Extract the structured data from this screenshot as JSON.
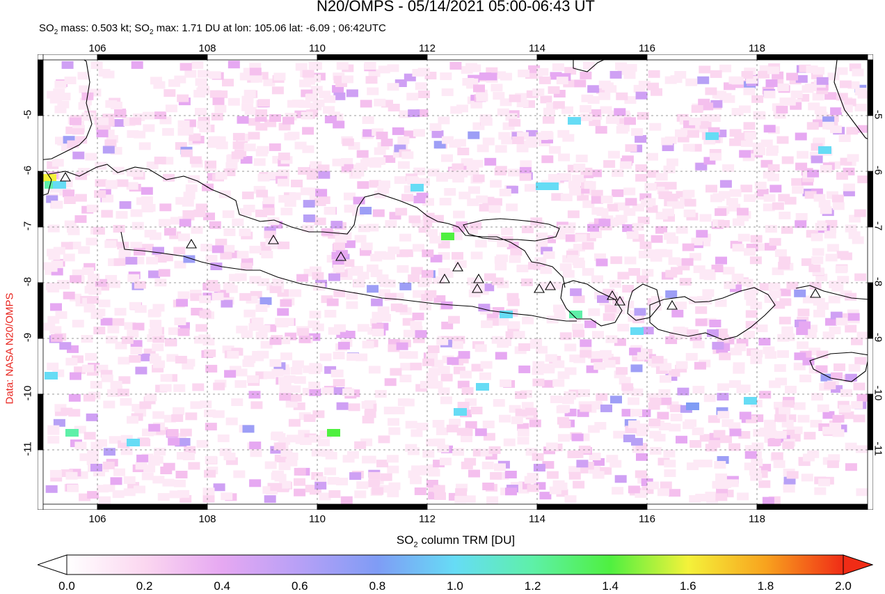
{
  "title": "N20/OMPS - 05/14/2021 05:00-06:43 UT",
  "subtitle": {
    "so2_prefix": "SO",
    "mass_text": " mass: 0.503 kt; SO",
    "max_text": " max: 1.71 DU at lon: 105.06 lat: -6.09 ; 06:42UTC",
    "sub2": "2"
  },
  "side_credit": "Data: NASA N20/OMPS",
  "map": {
    "lon_range": [
      105.0,
      120.0
    ],
    "lat_range": [
      -12.0,
      -3.5
    ],
    "lon_ticks": [
      "106",
      "108",
      "110",
      "112",
      "114",
      "116",
      "118"
    ],
    "lat_ticks": [
      "-5",
      "-6",
      "-7",
      "-8",
      "-9",
      "-10",
      "-11"
    ],
    "grid": true,
    "volcano_icon": "triangle-icon"
  },
  "colorbar": {
    "title_prefix": "SO",
    "title_sub": "2",
    "title_suffix": " column TRM [DU]",
    "ticks": [
      "0.0",
      "0.2",
      "0.4",
      "0.6",
      "0.8",
      "1.0",
      "1.2",
      "1.4",
      "1.6",
      "1.8",
      "2.0"
    ],
    "range": [
      0.0,
      2.0
    ],
    "colors": [
      "#ffffff",
      "#fbd7f0",
      "#e6a8f2",
      "#b7a0f6",
      "#7f9cf5",
      "#66dcf5",
      "#5ef0a8",
      "#4ff040",
      "#f4f23a",
      "#f8a31e",
      "#f02c16"
    ]
  }
}
